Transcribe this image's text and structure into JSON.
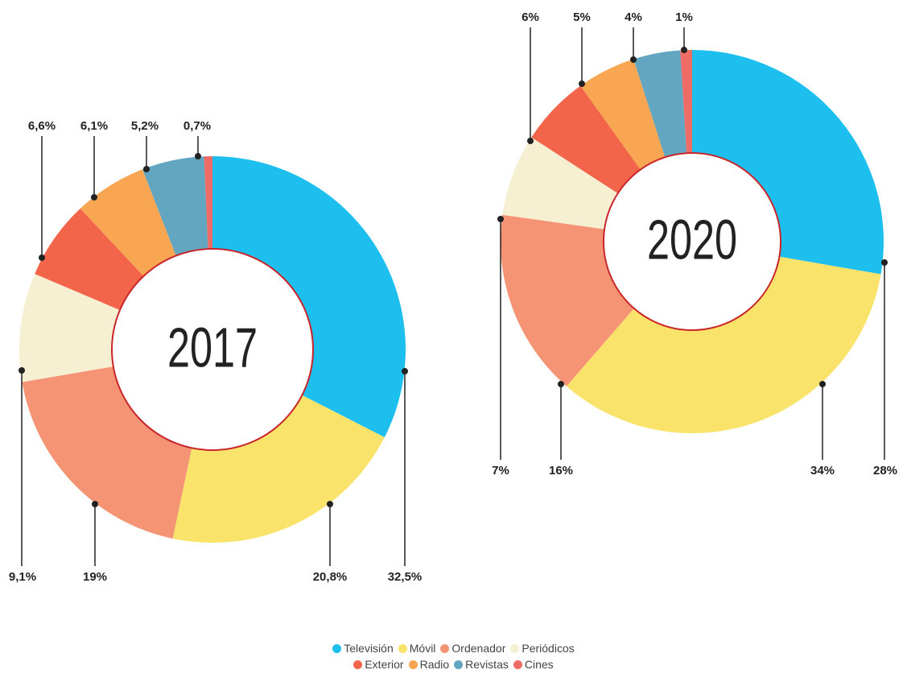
{
  "legend": {
    "categories": [
      "Televisión",
      "Móvil",
      "Ordenador",
      "Periódicos",
      "Exterior",
      "Radio",
      "Revistas",
      "Cines"
    ],
    "colors": [
      "#1dbfee",
      "#fae36b",
      "#f49474",
      "#f6efd2",
      "#f2654a",
      "#f9a652",
      "#62a6c2",
      "#ef6b66"
    ]
  },
  "chart_data": [
    {
      "type": "donut",
      "title": "2017",
      "values": [
        32.5,
        20.8,
        19,
        9.1,
        6.6,
        6.1,
        5.2,
        0.7
      ],
      "value_labels": [
        "32,5%",
        "20,8%",
        "19%",
        "9,1%",
        "6,6%",
        "6,1%",
        "5,2%",
        "0,7%"
      ]
    },
    {
      "type": "donut",
      "title": "2020",
      "values": [
        28,
        34,
        16,
        7,
        6,
        5,
        4,
        1
      ],
      "value_labels": [
        "28%",
        "34%",
        "16%",
        "7%",
        "6%",
        "5%",
        "4%",
        "1%"
      ]
    }
  ]
}
